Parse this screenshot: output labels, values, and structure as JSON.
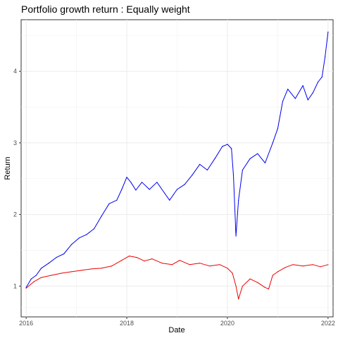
{
  "chart_data": {
    "type": "line",
    "title": "Portfolio growth return : Equally weight",
    "xlabel": "Date",
    "ylabel": "Return",
    "x_ticks": [
      "2016",
      "2018",
      "2020",
      "2022"
    ],
    "y_ticks": [
      "1",
      "2",
      "3",
      "4"
    ],
    "xlim": [
      2015.9,
      2022.1
    ],
    "ylim": [
      0.57,
      4.72
    ],
    "grid": true,
    "legend": "none",
    "series": [
      {
        "color": "#0000ee",
        "x": [
          2016.0,
          2016.1,
          2016.2,
          2016.3,
          2016.45,
          2016.6,
          2016.75,
          2016.9,
          2017.05,
          2017.2,
          2017.35,
          2017.5,
          2017.65,
          2017.8,
          2017.9,
          2018.0,
          2018.08,
          2018.18,
          2018.3,
          2018.45,
          2018.6,
          2018.75,
          2018.85,
          2018.93,
          2019.0,
          2019.15,
          2019.3,
          2019.45,
          2019.6,
          2019.75,
          2019.9,
          2020.0,
          2020.08,
          2020.12,
          2020.17,
          2020.22,
          2020.3,
          2020.45,
          2020.6,
          2020.75,
          2020.9,
          2021.0,
          2021.1,
          2021.2,
          2021.35,
          2021.5,
          2021.6,
          2021.7,
          2021.8,
          2021.88,
          2021.94,
          2022.0
        ],
        "values": [
          0.98,
          1.1,
          1.15,
          1.25,
          1.32,
          1.4,
          1.45,
          1.58,
          1.67,
          1.72,
          1.8,
          1.98,
          2.15,
          2.2,
          2.35,
          2.52,
          2.45,
          2.34,
          2.45,
          2.35,
          2.45,
          2.3,
          2.2,
          2.28,
          2.35,
          2.42,
          2.55,
          2.7,
          2.62,
          2.78,
          2.95,
          2.98,
          2.92,
          2.55,
          1.7,
          2.2,
          2.62,
          2.78,
          2.85,
          2.72,
          3.0,
          3.2,
          3.58,
          3.75,
          3.62,
          3.8,
          3.6,
          3.7,
          3.85,
          3.92,
          4.2,
          4.55
        ]
      },
      {
        "color": "#ee0000",
        "x": [
          2016.0,
          2016.15,
          2016.3,
          2016.5,
          2016.7,
          2016.9,
          2017.1,
          2017.3,
          2017.5,
          2017.7,
          2017.9,
          2018.05,
          2018.2,
          2018.35,
          2018.5,
          2018.7,
          2018.9,
          2019.05,
          2019.25,
          2019.45,
          2019.65,
          2019.85,
          2020.0,
          2020.1,
          2020.17,
          2020.22,
          2020.3,
          2020.45,
          2020.6,
          2020.75,
          2020.82,
          2020.9,
          2021.0,
          2021.15,
          2021.3,
          2021.5,
          2021.7,
          2021.85,
          2022.0
        ],
        "values": [
          0.97,
          1.06,
          1.12,
          1.15,
          1.18,
          1.2,
          1.22,
          1.24,
          1.25,
          1.28,
          1.36,
          1.42,
          1.4,
          1.35,
          1.38,
          1.32,
          1.3,
          1.36,
          1.3,
          1.32,
          1.28,
          1.3,
          1.25,
          1.18,
          1.0,
          0.82,
          1.0,
          1.1,
          1.05,
          0.98,
          0.96,
          1.15,
          1.2,
          1.26,
          1.3,
          1.28,
          1.3,
          1.27,
          1.3
        ]
      }
    ]
  }
}
